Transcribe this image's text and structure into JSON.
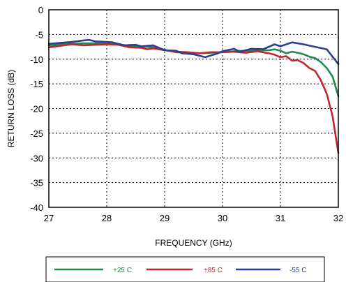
{
  "chart_data": {
    "type": "line",
    "title": "",
    "xlabel": "FREQUENCY (GHz)",
    "ylabel": "RETURN LOSS (dB)",
    "xlim": [
      27,
      32
    ],
    "ylim": [
      -40,
      0
    ],
    "x_ticks": [
      27,
      28,
      29,
      30,
      31,
      32
    ],
    "y_ticks": [
      0,
      -5,
      -10,
      -15,
      -20,
      -25,
      -30,
      -35,
      -40
    ],
    "grid": true,
    "legend_position": "bottom",
    "series": [
      {
        "name": "+25 C",
        "color": "#1f8a4c",
        "points": [
          [
            27.0,
            -7.2
          ],
          [
            27.3,
            -6.9
          ],
          [
            27.6,
            -6.8
          ],
          [
            27.9,
            -6.8
          ],
          [
            28.2,
            -7.0
          ],
          [
            28.4,
            -7.3
          ],
          [
            28.6,
            -7.4
          ],
          [
            28.8,
            -7.6
          ],
          [
            29.0,
            -8.1
          ],
          [
            29.2,
            -8.6
          ],
          [
            29.4,
            -8.7
          ],
          [
            29.6,
            -8.8
          ],
          [
            29.8,
            -8.7
          ],
          [
            30.0,
            -8.6
          ],
          [
            30.2,
            -8.4
          ],
          [
            30.4,
            -8.3
          ],
          [
            30.6,
            -8.2
          ],
          [
            30.8,
            -8.2
          ],
          [
            30.9,
            -8.0
          ],
          [
            31.0,
            -8.3
          ],
          [
            31.1,
            -8.8
          ],
          [
            31.2,
            -8.5
          ],
          [
            31.3,
            -8.7
          ],
          [
            31.4,
            -9.0
          ],
          [
            31.5,
            -9.5
          ],
          [
            31.6,
            -9.8
          ],
          [
            31.7,
            -10.6
          ],
          [
            31.8,
            -11.8
          ],
          [
            31.9,
            -13.5
          ],
          [
            32.0,
            -17.5
          ]
        ]
      },
      {
        "name": "+85 C",
        "color": "#c0272d",
        "points": [
          [
            27.0,
            -7.6
          ],
          [
            27.2,
            -7.3
          ],
          [
            27.4,
            -7.0
          ],
          [
            27.6,
            -7.2
          ],
          [
            27.8,
            -7.1
          ],
          [
            28.0,
            -7.0
          ],
          [
            28.2,
            -7.1
          ],
          [
            28.4,
            -7.6
          ],
          [
            28.6,
            -7.7
          ],
          [
            28.7,
            -8.0
          ],
          [
            28.8,
            -7.8
          ],
          [
            29.0,
            -8.2
          ],
          [
            29.2,
            -8.5
          ],
          [
            29.4,
            -8.6
          ],
          [
            29.6,
            -8.8
          ],
          [
            29.8,
            -8.6
          ],
          [
            30.0,
            -8.6
          ],
          [
            30.2,
            -8.5
          ],
          [
            30.4,
            -8.7
          ],
          [
            30.6,
            -8.4
          ],
          [
            30.8,
            -8.8
          ],
          [
            30.9,
            -9.1
          ],
          [
            31.0,
            -9.6
          ],
          [
            31.1,
            -9.4
          ],
          [
            31.2,
            -10.3
          ],
          [
            31.3,
            -10.2
          ],
          [
            31.4,
            -10.8
          ],
          [
            31.5,
            -11.8
          ],
          [
            31.6,
            -12.4
          ],
          [
            31.7,
            -14.3
          ],
          [
            31.8,
            -17.0
          ],
          [
            31.9,
            -21.5
          ],
          [
            32.0,
            -29.0
          ]
        ]
      },
      {
        "name": "-55 C",
        "color": "#2b3f92",
        "points": [
          [
            27.0,
            -6.9
          ],
          [
            27.2,
            -6.7
          ],
          [
            27.4,
            -6.5
          ],
          [
            27.6,
            -6.2
          ],
          [
            27.7,
            -6.1
          ],
          [
            27.8,
            -6.4
          ],
          [
            28.0,
            -6.5
          ],
          [
            28.1,
            -6.6
          ],
          [
            28.3,
            -7.2
          ],
          [
            28.5,
            -7.1
          ],
          [
            28.6,
            -7.4
          ],
          [
            28.8,
            -7.2
          ],
          [
            29.0,
            -8.2
          ],
          [
            29.2,
            -8.3
          ],
          [
            29.3,
            -8.8
          ],
          [
            29.5,
            -9.0
          ],
          [
            29.7,
            -9.6
          ],
          [
            29.9,
            -8.9
          ],
          [
            30.0,
            -8.4
          ],
          [
            30.2,
            -7.9
          ],
          [
            30.3,
            -8.5
          ],
          [
            30.5,
            -7.9
          ],
          [
            30.7,
            -8.0
          ],
          [
            30.9,
            -7.0
          ],
          [
            31.0,
            -7.4
          ],
          [
            31.2,
            -6.6
          ],
          [
            31.4,
            -7.0
          ],
          [
            31.6,
            -7.5
          ],
          [
            31.8,
            -8.0
          ],
          [
            31.9,
            -9.5
          ],
          [
            32.0,
            -11.0
          ]
        ]
      }
    ]
  }
}
